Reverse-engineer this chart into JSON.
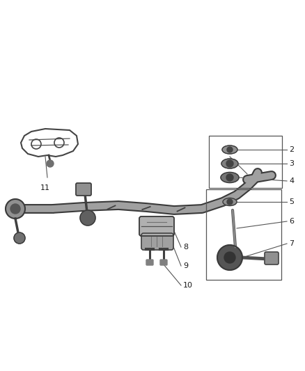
{
  "bg_color": "#ffffff",
  "bar_color": "#a0a0a0",
  "bar_edge_color": "#3a3a3a",
  "dark_color": "#1a1a1a",
  "mid_color": "#666666",
  "light_color": "#cccccc",
  "callout_line_color": "#555555",
  "figsize": [
    4.38,
    5.33
  ],
  "dpi": 100,
  "bar_lw": 7,
  "label_fontsize": 8,
  "callout_lw": 0.8,
  "xlim": [
    0,
    438
  ],
  "ylim": [
    0,
    533
  ]
}
